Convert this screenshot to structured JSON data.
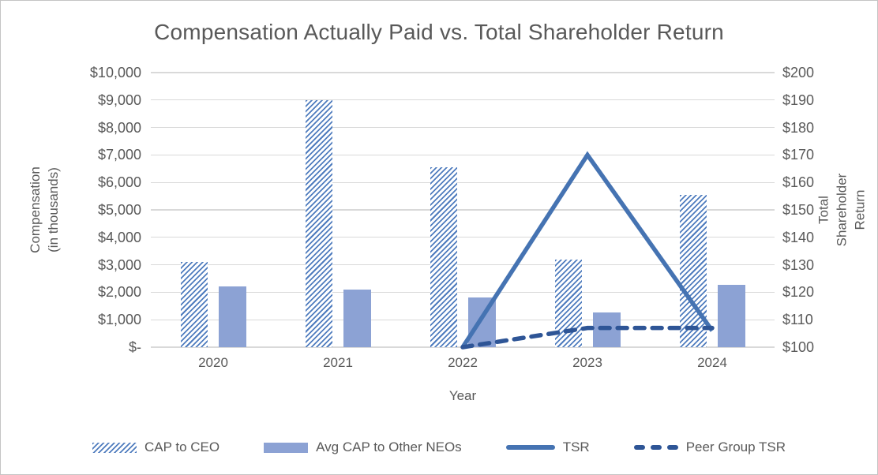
{
  "window": {
    "background": "#ffffff",
    "border_color": "#c4c4c4"
  },
  "chart_data": {
    "type": "combo-bar-line",
    "title": "Compensation Actually Paid vs. Total Shareholder Return",
    "categories": [
      "2020",
      "2021",
      "2022",
      "2023",
      "2024"
    ],
    "xlabel": "Year",
    "ylabel_left": "Compensation\n(in thousands)",
    "ylabel_right": "Total Shareholder Return",
    "ylim_left": [
      0,
      10000
    ],
    "ylim_right": [
      100,
      200
    ],
    "yticks_left": [
      "$10,000",
      "$9,000",
      "$8,000",
      "$7,000",
      "$6,000",
      "$5,000",
      "$4,000",
      "$3,000",
      "$2,000",
      "$1,000",
      "$-"
    ],
    "ytick_values_left": [
      10000,
      9000,
      8000,
      7000,
      6000,
      5000,
      4000,
      3000,
      2000,
      1000,
      0
    ],
    "yticks_right": [
      "$200",
      "$190",
      "$180",
      "$170",
      "$160",
      "$150",
      "$140",
      "$130",
      "$120",
      "$110",
      "$100"
    ],
    "ytick_values_right": [
      200,
      190,
      180,
      170,
      160,
      150,
      140,
      130,
      120,
      110,
      100
    ],
    "grid": true,
    "grid_color": "#d9d9d9",
    "text_color": "#595959",
    "legend_position": "bottom",
    "series": [
      {
        "name": "CAP to CEO",
        "type": "bar",
        "style": "hatched",
        "axis": "left",
        "color": "#4f7cbe",
        "values": [
          3100,
          9000,
          6550,
          3200,
          5550
        ]
      },
      {
        "name": "Avg CAP to Other NEOs",
        "type": "bar",
        "style": "solid",
        "axis": "left",
        "color": "#8ca2d4",
        "values": [
          2200,
          2100,
          1800,
          1270,
          2270
        ]
      },
      {
        "name": "TSR",
        "type": "line",
        "style": "solid",
        "axis": "right",
        "color": "#4573b2",
        "values": [
          null,
          null,
          100,
          170,
          106
        ]
      },
      {
        "name": "Peer Group TSR",
        "type": "line",
        "style": "dashed",
        "axis": "right",
        "color": "#2e5596",
        "values": [
          null,
          null,
          100,
          107,
          107
        ]
      }
    ]
  }
}
